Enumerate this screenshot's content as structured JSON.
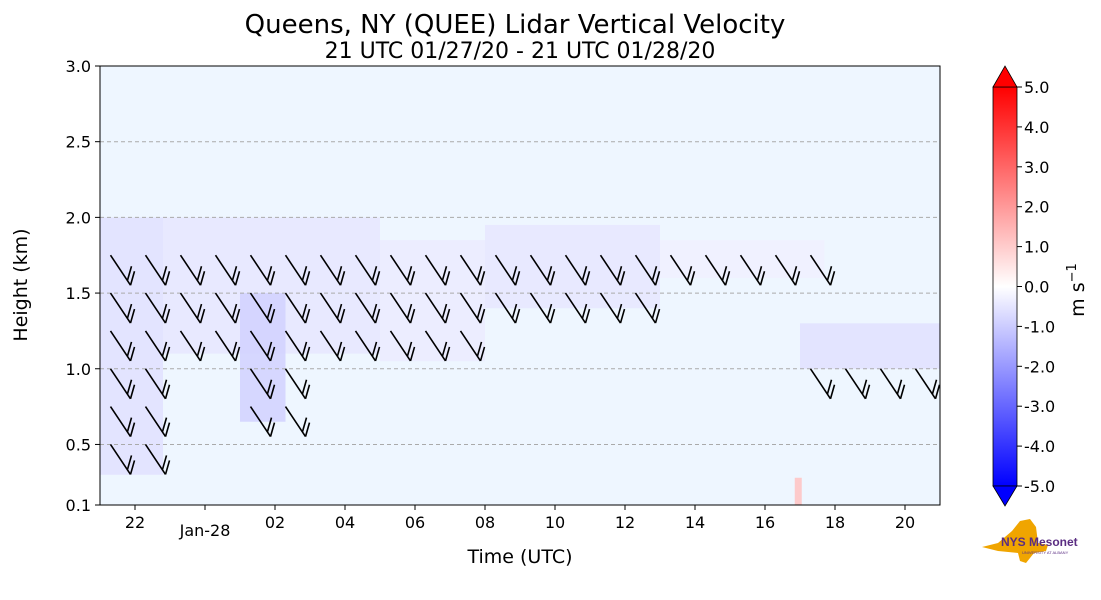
{
  "chart_data": {
    "type": "heatmap",
    "title": "Queens, NY (QUEE) Lidar Vertical Velocity",
    "subtitle": "21 UTC 01/27/20 - 21 UTC 01/28/20",
    "xlabel": "Time (UTC)",
    "ylabel": "Height (km)",
    "xlim": [
      "01/27/20 21:00 UTC",
      "01/28/20 21:00 UTC"
    ],
    "ylim": [
      0.1,
      3.0
    ],
    "x_ticks": [
      {
        "time": "01/27/20 22:00 UTC",
        "label": "22"
      },
      {
        "time": "01/28/20 00:00 UTC",
        "label": "Jan-28"
      },
      {
        "time": "01/28/20 02:00 UTC",
        "label": "02"
      },
      {
        "time": "01/28/20 04:00 UTC",
        "label": "04"
      },
      {
        "time": "01/28/20 06:00 UTC",
        "label": "06"
      },
      {
        "time": "01/28/20 08:00 UTC",
        "label": "08"
      },
      {
        "time": "01/28/20 10:00 UTC",
        "label": "10"
      },
      {
        "time": "01/28/20 12:00 UTC",
        "label": "12"
      },
      {
        "time": "01/28/20 14:00 UTC",
        "label": "14"
      },
      {
        "time": "01/28/20 16:00 UTC",
        "label": "16"
      },
      {
        "time": "01/28/20 18:00 UTC",
        "label": "18"
      },
      {
        "time": "01/28/20 20:00 UTC",
        "label": "20"
      }
    ],
    "y_ticks": [
      0.1,
      0.5,
      1.0,
      1.5,
      2.0,
      2.5,
      3.0
    ],
    "y_tick_labels": [
      "0.1",
      "0.5",
      "1.0",
      "1.5",
      "2.0",
      "2.5",
      "3.0"
    ],
    "grid": "horizontal dashed",
    "colorbar": {
      "label": "m s",
      "label_exponent": "−1",
      "min": -5.0,
      "max": 5.0,
      "extend": "both",
      "tick_labels": [
        "5.0",
        "4.0",
        "3.0",
        "2.0",
        "1.0",
        "0.0",
        "-1.0",
        "-2.0",
        "-3.0",
        "-4.0",
        "-5.0"
      ],
      "tick_values": [
        5,
        4,
        3,
        2,
        1,
        0,
        -1,
        -2,
        -3,
        -4,
        -5
      ],
      "colors": [
        "#0000ff",
        "#ffffff",
        "#ff0000"
      ]
    },
    "background_value": 0.0,
    "background_color": "#eef6ff",
    "data_regions": [
      {
        "time_start": 0.0,
        "time_end": 1.8,
        "height_bottom": 0.3,
        "height_top": 2.0,
        "value": -0.6
      },
      {
        "time_start": 1.8,
        "time_end": 8.0,
        "height_bottom": 1.1,
        "height_top": 2.0,
        "value": -0.5
      },
      {
        "time_start": 4.0,
        "time_end": 5.3,
        "height_bottom": 0.65,
        "height_top": 1.5,
        "value": -0.9
      },
      {
        "time_start": 8.0,
        "time_end": 11.0,
        "height_bottom": 1.05,
        "height_top": 1.85,
        "value": -0.4
      },
      {
        "time_start": 11.0,
        "time_end": 16.0,
        "height_bottom": 1.4,
        "height_top": 1.95,
        "value": -0.5
      },
      {
        "time_start": 16.0,
        "time_end": 20.7,
        "height_bottom": 1.6,
        "height_top": 1.85,
        "value": -0.3
      },
      {
        "time_start": 20.0,
        "time_end": 24.0,
        "height_bottom": 1.0,
        "height_top": 1.3,
        "value": -0.6
      },
      {
        "time_start": 19.85,
        "time_end": 20.05,
        "height_bottom": 0.1,
        "height_top": 0.28,
        "value": 1.2
      }
    ],
    "wind_barbs": {
      "color": "#000000",
      "spacing_hours": 1.0,
      "levels_km": [
        0.25,
        0.5,
        0.75,
        1.0,
        1.25,
        1.5,
        1.75
      ]
    },
    "contours": {
      "color": "#000000",
      "levels": [
        -1.0,
        1.0
      ]
    }
  },
  "logo": {
    "text": "NYS Mesonet",
    "subtext": "UNIVERSITY AT ALBANY",
    "state_color": "#f0a500",
    "text_color": "#5a2d82"
  }
}
